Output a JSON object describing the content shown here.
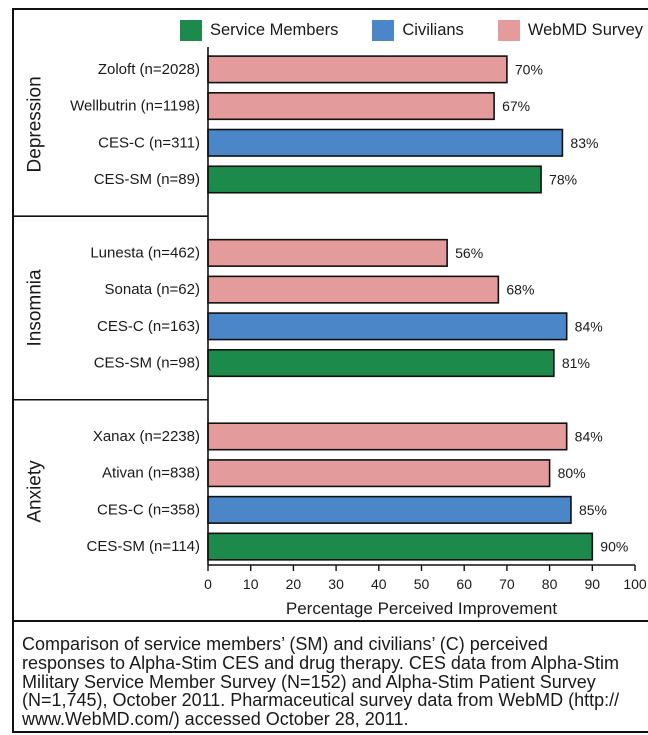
{
  "chart_data": {
    "type": "bar",
    "orientation": "horizontal",
    "legend_position": "top",
    "grid": false,
    "series": [
      {
        "name": "Service Members",
        "color": "#1b8a4b"
      },
      {
        "name": "Civilians",
        "color": "#4b87c8"
      },
      {
        "name": "WebMD Survey",
        "color": "#e49b9b"
      }
    ],
    "groups": [
      {
        "name": "Depression",
        "bars": [
          {
            "category": "Zoloft (n=2028)",
            "value": 70,
            "series": 2
          },
          {
            "category": "Wellbutrin (n=1198)",
            "value": 67,
            "series": 2
          },
          {
            "category": "CES-C (n=311)",
            "value": 83,
            "series": 1
          },
          {
            "category": "CES-SM (n=89)",
            "value": 78,
            "series": 0
          }
        ]
      },
      {
        "name": "Insomnia",
        "bars": [
          {
            "category": "Lunesta (n=462)",
            "value": 56,
            "series": 2
          },
          {
            "category": "Sonata (n=62)",
            "value": 68,
            "series": 2
          },
          {
            "category": "CES-C (n=163)",
            "value": 84,
            "series": 1
          },
          {
            "category": "CES-SM (n=98)",
            "value": 81,
            "series": 0
          }
        ]
      },
      {
        "name": "Anxiety",
        "bars": [
          {
            "category": "Xanax (n=2238)",
            "value": 84,
            "series": 2
          },
          {
            "category": "Ativan (n=838)",
            "value": 80,
            "series": 2
          },
          {
            "category": "CES-C (n=358)",
            "value": 85,
            "series": 1
          },
          {
            "category": "CES-SM (n=114)",
            "value": 90,
            "series": 0
          }
        ]
      }
    ],
    "value_suffix": "%",
    "xlabel": "Percentage Perceived Improvement",
    "xlim": [
      0,
      100
    ],
    "xticks": [
      0,
      10,
      20,
      30,
      40,
      50,
      60,
      70,
      80,
      90,
      100
    ]
  },
  "caption": {
    "lines": [
      "Comparison of service members’ (SM) and civilians’ (C) perceived",
      "responses to Alpha-Stim CES and drug therapy. CES data from Alpha-Stim",
      "Military Service Member Survey (N=152) and Alpha-Stim Patient Survey",
      "(N=1,745), October 2011. Pharmaceutical survey data from WebMD (http://",
      "www.WebMD.com/) accessed October 28, 2011."
    ]
  }
}
